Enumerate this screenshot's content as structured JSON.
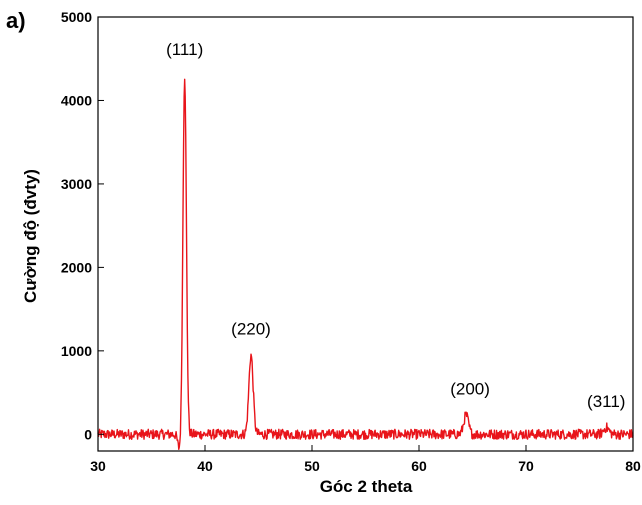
{
  "panel_label": "a)",
  "chart_data": {
    "type": "line",
    "title": "",
    "xlabel": "Góc 2 theta",
    "ylabel": "Cường độ (đvty)",
    "xlim": [
      30,
      80
    ],
    "ylim": [
      -200,
      5000
    ],
    "xticks": [
      30,
      40,
      50,
      60,
      70,
      80
    ],
    "yticks": [
      0,
      1000,
      2000,
      3000,
      4000,
      5000
    ],
    "grid": false,
    "legend": "none",
    "color": "#e8141a",
    "baseline_noise": 60,
    "peaks": [
      {
        "x": 38.1,
        "height": 4300,
        "width": 0.16,
        "label": "(111)"
      },
      {
        "x": 44.3,
        "height": 950,
        "width": 0.2,
        "label": "(220)"
      },
      {
        "x": 64.4,
        "height": 230,
        "width": 0.22,
        "label": "(200)"
      },
      {
        "x": 77.5,
        "height": 80,
        "width": 0.25,
        "label": "(311)"
      }
    ]
  }
}
